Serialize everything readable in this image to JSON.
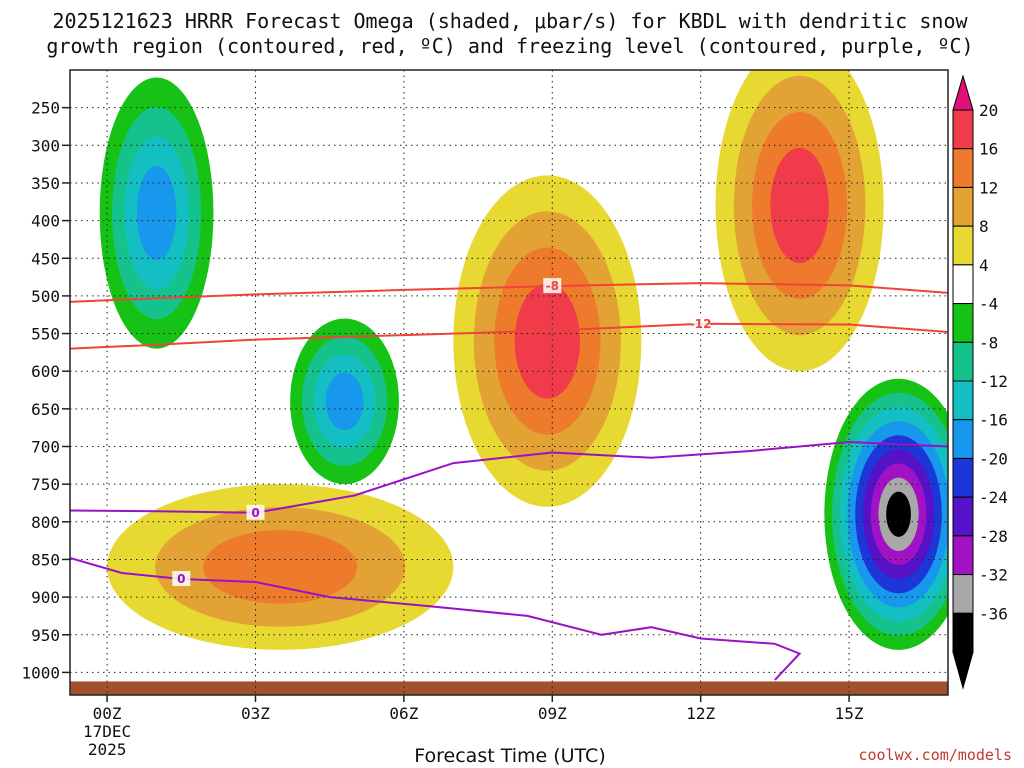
{
  "chart_data": {
    "type": "heatmap",
    "title_line1": "2025121623 HRRR Forecast Omega (shaded, μbar/s) for KBDL with dendritic snow",
    "title_line2": "growth region (contoured, red, ºC) and freezing level (contoured, purple, ºC)",
    "xlabel": "Forecast Time (UTC)",
    "ylabel": "",
    "credit": "coolwx.com/models",
    "x_range_hours": [
      -0.75,
      17
    ],
    "y_range_mb": [
      200,
      1030
    ],
    "x_ticks": [
      {
        "hour": 0,
        "label": "00Z",
        "sub1": "17DEC",
        "sub2": "2025"
      },
      {
        "hour": 3,
        "label": "03Z"
      },
      {
        "hour": 6,
        "label": "06Z"
      },
      {
        "hour": 9,
        "label": "09Z"
      },
      {
        "hour": 12,
        "label": "12Z"
      },
      {
        "hour": 15,
        "label": "15Z"
      }
    ],
    "y_ticks": [
      {
        "mb": 250,
        "label": "250"
      },
      {
        "mb": 300,
        "label": "300"
      },
      {
        "mb": 350,
        "label": "350"
      },
      {
        "mb": 400,
        "label": "400"
      },
      {
        "mb": 450,
        "label": "450"
      },
      {
        "mb": 500,
        "label": "500"
      },
      {
        "mb": 550,
        "label": "550"
      },
      {
        "mb": 600,
        "label": "600"
      },
      {
        "mb": 650,
        "label": "650"
      },
      {
        "mb": 700,
        "label": "700"
      },
      {
        "mb": 750,
        "label": "750"
      },
      {
        "mb": 800,
        "label": "800"
      },
      {
        "mb": 850,
        "label": "850"
      },
      {
        "mb": 900,
        "label": "900"
      },
      {
        "mb": 950,
        "label": "950"
      },
      {
        "mb": 1000,
        "label": "1000"
      }
    ],
    "colorbar": {
      "levels": [
        {
          "label": "20",
          "color": "#f03c4a"
        },
        {
          "label": "16",
          "color": "#ee7b2b"
        },
        {
          "label": "12",
          "color": "#e2a334"
        },
        {
          "label": "8",
          "color": "#e8d832"
        },
        {
          "label": "4",
          "color": "#ffffff"
        },
        {
          "label": "-4",
          "color": "#17c217"
        },
        {
          "label": "-8",
          "color": "#16c28c"
        },
        {
          "label": "-12",
          "color": "#14bfc4"
        },
        {
          "label": "-16",
          "color": "#1898ec"
        },
        {
          "label": "-20",
          "color": "#1c36d8"
        },
        {
          "label": "-24",
          "color": "#5512c7"
        },
        {
          "label": "-28",
          "color": "#a012c4"
        },
        {
          "label": "-32",
          "color": "#a8a8a8"
        },
        {
          "label": "-36",
          "color": "#000000"
        }
      ],
      "top_color": "#e0107a",
      "bottom_color": "#000000"
    },
    "features": [
      {
        "kind": "blob",
        "name": "omega-neg-upper-left",
        "center": [
          1.0,
          390
        ],
        "rx_h": 1.15,
        "ry_mb": 180,
        "levels": [
          -4,
          -8,
          -12,
          -16
        ]
      },
      {
        "kind": "blob",
        "name": "omega-neg-mid-03z",
        "center": [
          4.8,
          640
        ],
        "rx_h": 1.1,
        "ry_mb": 110,
        "levels": [
          -4,
          -8,
          -12,
          -16
        ]
      },
      {
        "kind": "blob",
        "name": "omega-pos-09z-column",
        "center": [
          8.9,
          560
        ],
        "rx_h": 1.9,
        "ry_mb": 220,
        "levels": [
          4,
          8,
          12,
          16
        ]
      },
      {
        "kind": "blob",
        "name": "omega-pos-14z-column",
        "center": [
          14.0,
          380
        ],
        "rx_h": 1.7,
        "ry_mb": 220,
        "levels": [
          4,
          8,
          12,
          16
        ]
      },
      {
        "kind": "blob",
        "name": "omega-neg-16z-low",
        "center": [
          16.0,
          790
        ],
        "rx_h": 1.5,
        "ry_mb": 180,
        "levels": [
          -4,
          -8,
          -12,
          -16,
          -20,
          -24,
          -28,
          -32,
          -36
        ]
      },
      {
        "kind": "blob",
        "name": "omega-pos-lowlevel",
        "center": [
          3.5,
          860
        ],
        "rx_h": 3.5,
        "ry_mb": 110,
        "levels": [
          4,
          8,
          12
        ]
      }
    ],
    "dgz_contours": [
      {
        "label": "-8",
        "points": [
          [
            -0.75,
            508
          ],
          [
            1.0,
            503
          ],
          [
            3.0,
            498
          ],
          [
            6.0,
            492
          ],
          [
            9.0,
            487
          ],
          [
            12.0,
            483
          ],
          [
            15.0,
            486
          ],
          [
            17.0,
            496
          ]
        ]
      },
      {
        "label": "-12",
        "points": [
          [
            -0.75,
            570
          ],
          [
            1.0,
            565
          ],
          [
            3.0,
            558
          ],
          [
            6.0,
            552
          ],
          [
            9.0,
            546
          ],
          [
            12.0,
            537
          ],
          [
            15.0,
            538
          ],
          [
            17.0,
            548
          ]
        ]
      }
    ],
    "freezing_contours": [
      {
        "label": "0",
        "points": [
          [
            -0.75,
            785
          ],
          [
            1.0,
            786
          ],
          [
            3.0,
            788
          ],
          [
            5.0,
            765
          ],
          [
            7.0,
            722
          ],
          [
            9.0,
            708
          ],
          [
            11.0,
            715
          ],
          [
            13.0,
            706
          ],
          [
            15.0,
            694
          ],
          [
            17.0,
            700
          ]
        ]
      },
      {
        "label": "0",
        "points": [
          [
            -0.75,
            848
          ],
          [
            0.3,
            868
          ],
          [
            1.5,
            876
          ],
          [
            3.0,
            880
          ],
          [
            4.5,
            900
          ],
          [
            6.5,
            912
          ],
          [
            8.5,
            925
          ],
          [
            10.0,
            950
          ],
          [
            11.0,
            940
          ],
          [
            12.0,
            955
          ],
          [
            13.5,
            962
          ],
          [
            14.0,
            975
          ],
          [
            13.5,
            1010
          ]
        ]
      }
    ],
    "ground_color": "#a0522d"
  }
}
